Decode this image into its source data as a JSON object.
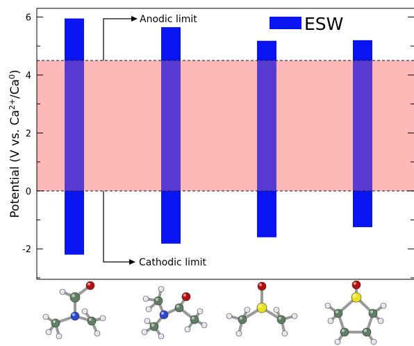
{
  "chart_data": {
    "type": "bar",
    "series": [
      {
        "name": "ESW",
        "color": "#0a14f0",
        "intervals": [
          {
            "low": -2.2,
            "high": 5.95
          },
          {
            "low": -1.82,
            "high": 5.65
          },
          {
            "low": -1.6,
            "high": 5.18
          },
          {
            "low": -1.25,
            "high": 5.2
          }
        ]
      }
    ],
    "ylabel_parts": [
      "Potential (V vs. Ca",
      "2+",
      "/Ca",
      "0",
      ")"
    ],
    "ylim": [
      -3.05,
      6.3
    ],
    "yticks": [
      -2,
      0,
      2,
      4,
      6
    ],
    "ytick_labels": [
      "-2",
      "0",
      "2",
      "4",
      "6"
    ],
    "legend": {
      "label": "ESW",
      "placement": "top-right"
    },
    "reference_band": {
      "low": 0,
      "high": 4.5,
      "color": "#ffcccc",
      "line_style": "dashed"
    },
    "annotations": {
      "anodic": "Anodic limit",
      "cathodic": "Cathodic limit"
    },
    "grid": false
  },
  "molecules": {
    "icons": [
      "dimethylformamide-molecule-icon",
      "dimethylacetamide-molecule-icon",
      "dimethyl-sulfoxide-molecule-icon",
      "sulfolane-molecule-icon"
    ],
    "colors": {
      "carbon": "#5f7f63",
      "hydrogen": "#e4e4f0",
      "oxygen": "#b51010",
      "nitrogen": "#2a49d8",
      "sulfur": "#e8e020"
    }
  }
}
